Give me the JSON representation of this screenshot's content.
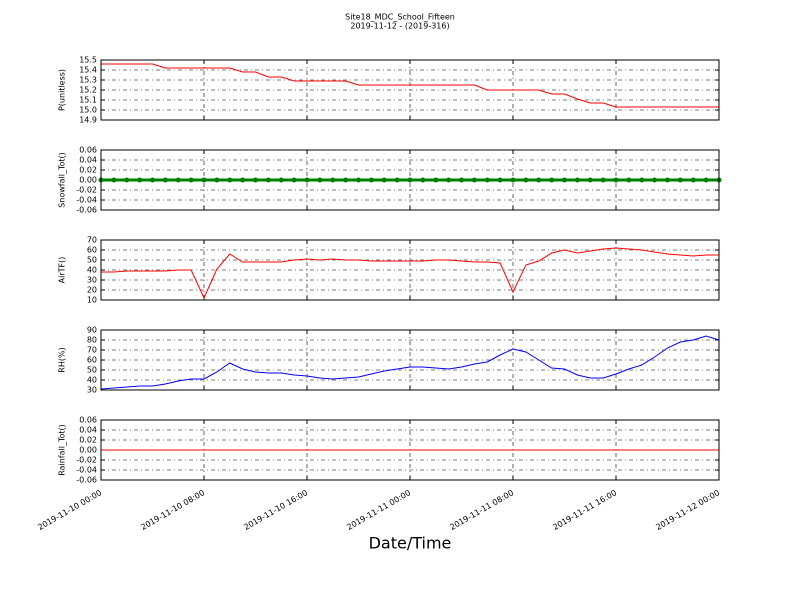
{
  "chart_data": [
    {
      "type": "line",
      "title": "Site18_MDC_School_Fifteen",
      "subtitle": "2019-11-12 - (2019-316)",
      "ylabel": "P(unitless)",
      "color": "#ff0000",
      "grid": true,
      "x": [
        "2019-11-10 00:00",
        "2019-11-10 01:00",
        "2019-11-10 02:00",
        "2019-11-10 03:00",
        "2019-11-10 04:00",
        "2019-11-10 05:00",
        "2019-11-10 06:00",
        "2019-11-10 07:00",
        "2019-11-10 08:00",
        "2019-11-10 09:00",
        "2019-11-10 10:00",
        "2019-11-10 11:00",
        "2019-11-10 12:00",
        "2019-11-10 13:00",
        "2019-11-10 14:00",
        "2019-11-10 15:00",
        "2019-11-10 16:00",
        "2019-11-10 17:00",
        "2019-11-10 18:00",
        "2019-11-10 19:00",
        "2019-11-10 20:00",
        "2019-11-10 21:00",
        "2019-11-10 22:00",
        "2019-11-10 23:00",
        "2019-11-11 00:00",
        "2019-11-11 01:00",
        "2019-11-11 02:00",
        "2019-11-11 03:00",
        "2019-11-11 04:00",
        "2019-11-11 05:00",
        "2019-11-11 06:00",
        "2019-11-11 07:00",
        "2019-11-11 08:00",
        "2019-11-11 09:00",
        "2019-11-11 10:00",
        "2019-11-11 11:00",
        "2019-11-11 12:00",
        "2019-11-11 13:00",
        "2019-11-11 14:00",
        "2019-11-11 15:00",
        "2019-11-11 16:00",
        "2019-11-11 17:00",
        "2019-11-11 18:00",
        "2019-11-11 19:00",
        "2019-11-11 20:00",
        "2019-11-11 21:00",
        "2019-11-11 22:00",
        "2019-11-11 23:00",
        "2019-11-12 00:00"
      ],
      "values": [
        15.46,
        15.46,
        15.46,
        15.46,
        15.46,
        15.42,
        15.42,
        15.42,
        15.42,
        15.42,
        15.42,
        15.38,
        15.38,
        15.33,
        15.33,
        15.29,
        15.29,
        15.29,
        15.29,
        15.29,
        15.25,
        15.25,
        15.25,
        15.25,
        15.25,
        15.25,
        15.25,
        15.25,
        15.25,
        15.25,
        15.2,
        15.2,
        15.2,
        15.2,
        15.2,
        15.16,
        15.16,
        15.11,
        15.07,
        15.07,
        15.03,
        15.03,
        15.03,
        15.03,
        15.03,
        15.03,
        15.03,
        15.03,
        15.03
      ],
      "xlim": [
        "2019-11-10 00:00",
        "2019-11-12 00:00"
      ],
      "xticks": [
        "2019-11-10 00:00",
        "2019-11-10 08:00",
        "2019-11-10 16:00",
        "2019-11-11 00:00",
        "2019-11-11 08:00",
        "2019-11-11 16:00",
        "2019-11-12 00:00"
      ],
      "ylim": [
        14.9,
        15.5
      ],
      "yticks": [
        14.9,
        {
          "value": 15,
          "label": "15.0"
        },
        15.1,
        15.2,
        15.3,
        15.4,
        15.5
      ]
    },
    {
      "type": "line",
      "ylabel": "Snowfall_Tot()",
      "color": "#008000",
      "markers": true,
      "grid": true,
      "x": [
        "2019-11-10 00:00",
        "2019-11-10 01:00",
        "2019-11-10 02:00",
        "2019-11-10 03:00",
        "2019-11-10 04:00",
        "2019-11-10 05:00",
        "2019-11-10 06:00",
        "2019-11-10 07:00",
        "2019-11-10 08:00",
        "2019-11-10 09:00",
        "2019-11-10 10:00",
        "2019-11-10 11:00",
        "2019-11-10 12:00",
        "2019-11-10 13:00",
        "2019-11-10 14:00",
        "2019-11-10 15:00",
        "2019-11-10 16:00",
        "2019-11-10 17:00",
        "2019-11-10 18:00",
        "2019-11-10 19:00",
        "2019-11-10 20:00",
        "2019-11-10 21:00",
        "2019-11-10 22:00",
        "2019-11-10 23:00",
        "2019-11-11 00:00",
        "2019-11-11 01:00",
        "2019-11-11 02:00",
        "2019-11-11 03:00",
        "2019-11-11 04:00",
        "2019-11-11 05:00",
        "2019-11-11 06:00",
        "2019-11-11 07:00",
        "2019-11-11 08:00",
        "2019-11-11 09:00",
        "2019-11-11 10:00",
        "2019-11-11 11:00",
        "2019-11-11 12:00",
        "2019-11-11 13:00",
        "2019-11-11 14:00",
        "2019-11-11 15:00",
        "2019-11-11 16:00",
        "2019-11-11 17:00",
        "2019-11-11 18:00",
        "2019-11-11 19:00",
        "2019-11-11 20:00",
        "2019-11-11 21:00",
        "2019-11-11 22:00",
        "2019-11-11 23:00",
        "2019-11-12 00:00"
      ],
      "values": [
        0,
        0,
        0,
        0,
        0,
        0,
        0,
        0,
        0,
        0,
        0,
        0,
        0,
        0,
        0,
        0,
        0,
        0,
        0,
        0,
        0,
        0,
        0,
        0,
        0,
        0,
        0,
        0,
        0,
        0,
        0,
        0,
        0,
        0,
        0,
        0,
        0,
        0,
        0,
        0,
        0,
        0,
        0,
        0,
        0,
        0,
        0,
        0,
        0
      ],
      "xlim": [
        "2019-11-10 00:00",
        "2019-11-12 00:00"
      ],
      "xticks": [
        "2019-11-10 00:00",
        "2019-11-10 08:00",
        "2019-11-10 16:00",
        "2019-11-11 00:00",
        "2019-11-11 08:00",
        "2019-11-11 16:00",
        "2019-11-12 00:00"
      ],
      "ylim": [
        -0.06,
        0.06
      ],
      "yticks": [
        -0.06,
        -0.04,
        -0.02,
        {
          "value": 0,
          "label": "0.00"
        },
        0.02,
        0.04,
        0.06
      ]
    },
    {
      "type": "line",
      "ylabel": "AirTF()",
      "color": "#ff0000",
      "grid": true,
      "x": [
        "2019-11-10 00:00",
        "2019-11-10 01:00",
        "2019-11-10 02:00",
        "2019-11-10 03:00",
        "2019-11-10 04:00",
        "2019-11-10 05:00",
        "2019-11-10 06:00",
        "2019-11-10 07:00",
        "2019-11-10 08:00",
        "2019-11-10 09:00",
        "2019-11-10 10:00",
        "2019-11-10 11:00",
        "2019-11-10 12:00",
        "2019-11-10 13:00",
        "2019-11-10 14:00",
        "2019-11-10 15:00",
        "2019-11-10 16:00",
        "2019-11-10 17:00",
        "2019-11-10 18:00",
        "2019-11-10 19:00",
        "2019-11-10 20:00",
        "2019-11-10 21:00",
        "2019-11-10 22:00",
        "2019-11-10 23:00",
        "2019-11-11 00:00",
        "2019-11-11 01:00",
        "2019-11-11 02:00",
        "2019-11-11 03:00",
        "2019-11-11 04:00",
        "2019-11-11 05:00",
        "2019-11-11 06:00",
        "2019-11-11 07:00",
        "2019-11-11 08:00",
        "2019-11-11 09:00",
        "2019-11-11 10:00",
        "2019-11-11 11:00",
        "2019-11-11 12:00",
        "2019-11-11 13:00",
        "2019-11-11 14:00",
        "2019-11-11 15:00",
        "2019-11-11 16:00",
        "2019-11-11 17:00",
        "2019-11-11 18:00",
        "2019-11-11 19:00",
        "2019-11-11 20:00",
        "2019-11-11 21:00",
        "2019-11-11 22:00",
        "2019-11-11 23:00",
        "2019-11-12 00:00"
      ],
      "values": [
        38,
        38,
        39,
        39,
        39,
        39,
        40,
        40,
        12,
        41,
        56,
        48,
        48,
        48,
        48,
        50,
        51,
        50,
        51,
        50,
        50,
        49,
        49,
        49,
        49,
        49,
        50,
        50,
        49,
        48,
        48,
        47,
        18,
        45,
        49,
        57,
        60,
        57,
        59,
        61,
        62,
        61,
        60,
        58,
        56,
        55,
        54,
        55,
        55
      ],
      "xlim": [
        "2019-11-10 00:00",
        "2019-11-12 00:00"
      ],
      "xticks": [
        "2019-11-10 00:00",
        "2019-11-10 08:00",
        "2019-11-10 16:00",
        "2019-11-11 00:00",
        "2019-11-11 08:00",
        "2019-11-11 16:00",
        "2019-11-12 00:00"
      ],
      "ylim": [
        10,
        70
      ],
      "yticks": [
        10,
        20,
        30,
        40,
        50,
        60,
        70
      ]
    },
    {
      "type": "line",
      "ylabel": "RH(%)",
      "color": "#0000ff",
      "grid": true,
      "x": [
        "2019-11-10 00:00",
        "2019-11-10 01:00",
        "2019-11-10 02:00",
        "2019-11-10 03:00",
        "2019-11-10 04:00",
        "2019-11-10 05:00",
        "2019-11-10 06:00",
        "2019-11-10 07:00",
        "2019-11-10 08:00",
        "2019-11-10 09:00",
        "2019-11-10 10:00",
        "2019-11-10 11:00",
        "2019-11-10 12:00",
        "2019-11-10 13:00",
        "2019-11-10 14:00",
        "2019-11-10 15:00",
        "2019-11-10 16:00",
        "2019-11-10 17:00",
        "2019-11-10 18:00",
        "2019-11-10 19:00",
        "2019-11-10 20:00",
        "2019-11-10 21:00",
        "2019-11-10 22:00",
        "2019-11-10 23:00",
        "2019-11-11 00:00",
        "2019-11-11 01:00",
        "2019-11-11 02:00",
        "2019-11-11 03:00",
        "2019-11-11 04:00",
        "2019-11-11 05:00",
        "2019-11-11 06:00",
        "2019-11-11 07:00",
        "2019-11-11 08:00",
        "2019-11-11 09:00",
        "2019-11-11 10:00",
        "2019-11-11 11:00",
        "2019-11-11 12:00",
        "2019-11-11 13:00",
        "2019-11-11 14:00",
        "2019-11-11 15:00",
        "2019-11-11 16:00",
        "2019-11-11 17:00",
        "2019-11-11 18:00",
        "2019-11-11 19:00",
        "2019-11-11 20:00",
        "2019-11-11 21:00",
        "2019-11-11 22:00",
        "2019-11-11 23:00",
        "2019-11-12 00:00"
      ],
      "values": [
        31,
        32,
        33,
        34,
        34,
        36,
        39,
        41,
        41,
        48,
        57,
        51,
        48,
        47,
        47,
        45,
        44,
        42,
        41,
        42,
        43,
        46,
        49,
        51,
        53,
        53,
        52,
        51,
        53,
        56,
        58,
        65,
        71,
        68,
        60,
        52,
        51,
        45,
        42,
        42,
        46,
        51,
        55,
        63,
        72,
        78,
        80,
        84,
        80
      ],
      "xlim": [
        "2019-11-10 00:00",
        "2019-11-12 00:00"
      ],
      "xticks": [
        "2019-11-10 00:00",
        "2019-11-10 08:00",
        "2019-11-10 16:00",
        "2019-11-11 00:00",
        "2019-11-11 08:00",
        "2019-11-11 16:00",
        "2019-11-12 00:00"
      ],
      "ylim": [
        30,
        90
      ],
      "yticks": [
        30,
        40,
        50,
        60,
        70,
        80,
        90
      ]
    },
    {
      "type": "line",
      "ylabel": "Rainfall_Tot()",
      "xlabel": "Date/Time",
      "color": "#ff0000",
      "grid": true,
      "show_xtick_labels": true,
      "x": [
        "2019-11-10 00:00",
        "2019-11-10 01:00",
        "2019-11-10 02:00",
        "2019-11-10 03:00",
        "2019-11-10 04:00",
        "2019-11-10 05:00",
        "2019-11-10 06:00",
        "2019-11-10 07:00",
        "2019-11-10 08:00",
        "2019-11-10 09:00",
        "2019-11-10 10:00",
        "2019-11-10 11:00",
        "2019-11-10 12:00",
        "2019-11-10 13:00",
        "2019-11-10 14:00",
        "2019-11-10 15:00",
        "2019-11-10 16:00",
        "2019-11-10 17:00",
        "2019-11-10 18:00",
        "2019-11-10 19:00",
        "2019-11-10 20:00",
        "2019-11-10 21:00",
        "2019-11-10 22:00",
        "2019-11-10 23:00",
        "2019-11-11 00:00",
        "2019-11-11 01:00",
        "2019-11-11 02:00",
        "2019-11-11 03:00",
        "2019-11-11 04:00",
        "2019-11-11 05:00",
        "2019-11-11 06:00",
        "2019-11-11 07:00",
        "2019-11-11 08:00",
        "2019-11-11 09:00",
        "2019-11-11 10:00",
        "2019-11-11 11:00",
        "2019-11-11 12:00",
        "2019-11-11 13:00",
        "2019-11-11 14:00",
        "2019-11-11 15:00",
        "2019-11-11 16:00",
        "2019-11-11 17:00",
        "2019-11-11 18:00",
        "2019-11-11 19:00",
        "2019-11-11 20:00",
        "2019-11-11 21:00",
        "2019-11-11 22:00",
        "2019-11-11 23:00",
        "2019-11-12 00:00"
      ],
      "values": [
        0,
        0,
        0,
        0,
        0,
        0,
        0,
        0,
        0,
        0,
        0,
        0,
        0,
        0,
        0,
        0,
        0,
        0,
        0,
        0,
        0,
        0,
        0,
        0,
        0,
        0,
        0,
        0,
        0,
        0,
        0,
        0,
        0,
        0,
        0,
        0,
        0,
        0,
        0,
        0,
        0,
        0,
        0,
        0,
        0,
        0,
        0,
        0,
        0
      ],
      "xlim": [
        "2019-11-10 00:00",
        "2019-11-12 00:00"
      ],
      "xticks": [
        "2019-11-10 00:00",
        "2019-11-10 08:00",
        "2019-11-10 16:00",
        "2019-11-11 00:00",
        "2019-11-11 08:00",
        "2019-11-11 16:00",
        "2019-11-12 00:00"
      ],
      "ylim": [
        -0.06,
        0.06
      ],
      "yticks": [
        -0.06,
        -0.04,
        -0.02,
        {
          "value": 0,
          "label": "0.00"
        },
        0.02,
        0.04,
        0.06
      ]
    }
  ]
}
